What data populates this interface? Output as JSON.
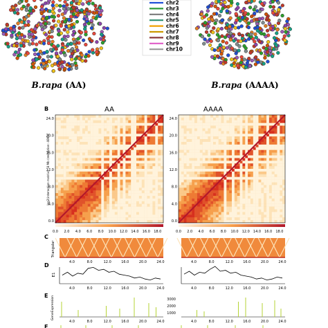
{
  "panel_a": {
    "legend": [
      "chr2",
      "chr3",
      "chr4",
      "chr5",
      "chr6",
      "chr7",
      "chr8",
      "chr9",
      "chr10"
    ],
    "legend_colors": [
      "#1f4fd8",
      "#2b9a3a",
      "#7a7a7a",
      "#2c8f6f",
      "#f0a000",
      "#cc9900",
      "#8b3a3a",
      "#e05cc8",
      "#9a9a9a"
    ],
    "bead_colors": [
      "#e8483b",
      "#2ca02c",
      "#1f4fd8",
      "#f0c419",
      "#8e44ad",
      "#e67e22",
      "#7f8c8d",
      "#16a085",
      "#d35400",
      "#c0392b",
      "#9b59b6"
    ],
    "labels": [
      {
        "species": "B.rapa",
        "genome": " (AA)"
      },
      {
        "species": "B.rapa",
        "genome": " (AAAA)"
      }
    ]
  },
  "panel_letters": {
    "b": "B",
    "c": "C",
    "d": "D",
    "e": "E",
    "f": "F"
  },
  "heatmaps": {
    "titles": [
      "AA",
      "AAAA"
    ],
    "ylabel": "log2(interaction matrix) - 8 Mb (resolution: 40Kb)",
    "yticks": [
      "24.0",
      "20.0",
      "16.0",
      "12.0",
      "8.0",
      "4.0",
      "0.0"
    ],
    "xticks": [
      "0.0",
      "2.0",
      "4.0",
      "6.0",
      "8.0",
      "10.0",
      "12.0",
      "14.0",
      "16.0",
      "18.0"
    ]
  },
  "triangular": {
    "label": "Triangular"
  },
  "track_ticks": [
    "4.0",
    "8.0",
    "12.0",
    "16.0",
    "20.0",
    "24.0"
  ],
  "e1": {
    "label": "E1"
  },
  "expression": {
    "label": "GeneExpression",
    "yticks": [
      "3000",
      "2000",
      "1000"
    ]
  },
  "colors": {
    "hic_low": "#fde3b8",
    "hic_mid": "#f6a04d",
    "hic_high": "#d7301f",
    "line": "#000000",
    "bars": "#b5d334"
  },
  "chart_data": {
    "type": "line",
    "series": [
      {
        "values": [
          0.2,
          0.35,
          0.15,
          0.3,
          0.25,
          0.55,
          0.6,
          0.45,
          0.5,
          0.35,
          0.4,
          0.25,
          0.2,
          0.15,
          0.05,
          0.1,
          0.0,
          -0.05,
          0.05,
          0.0
        ]
      },
      {
        "values": [
          0.25,
          0.4,
          0.2,
          0.35,
          0.3,
          0.5,
          0.65,
          0.4,
          0.45,
          0.3,
          0.35,
          0.2,
          0.15,
          0.1,
          0.0,
          0.05,
          -0.05,
          0.0,
          0.1,
          0.05
        ]
      }
    ]
  }
}
